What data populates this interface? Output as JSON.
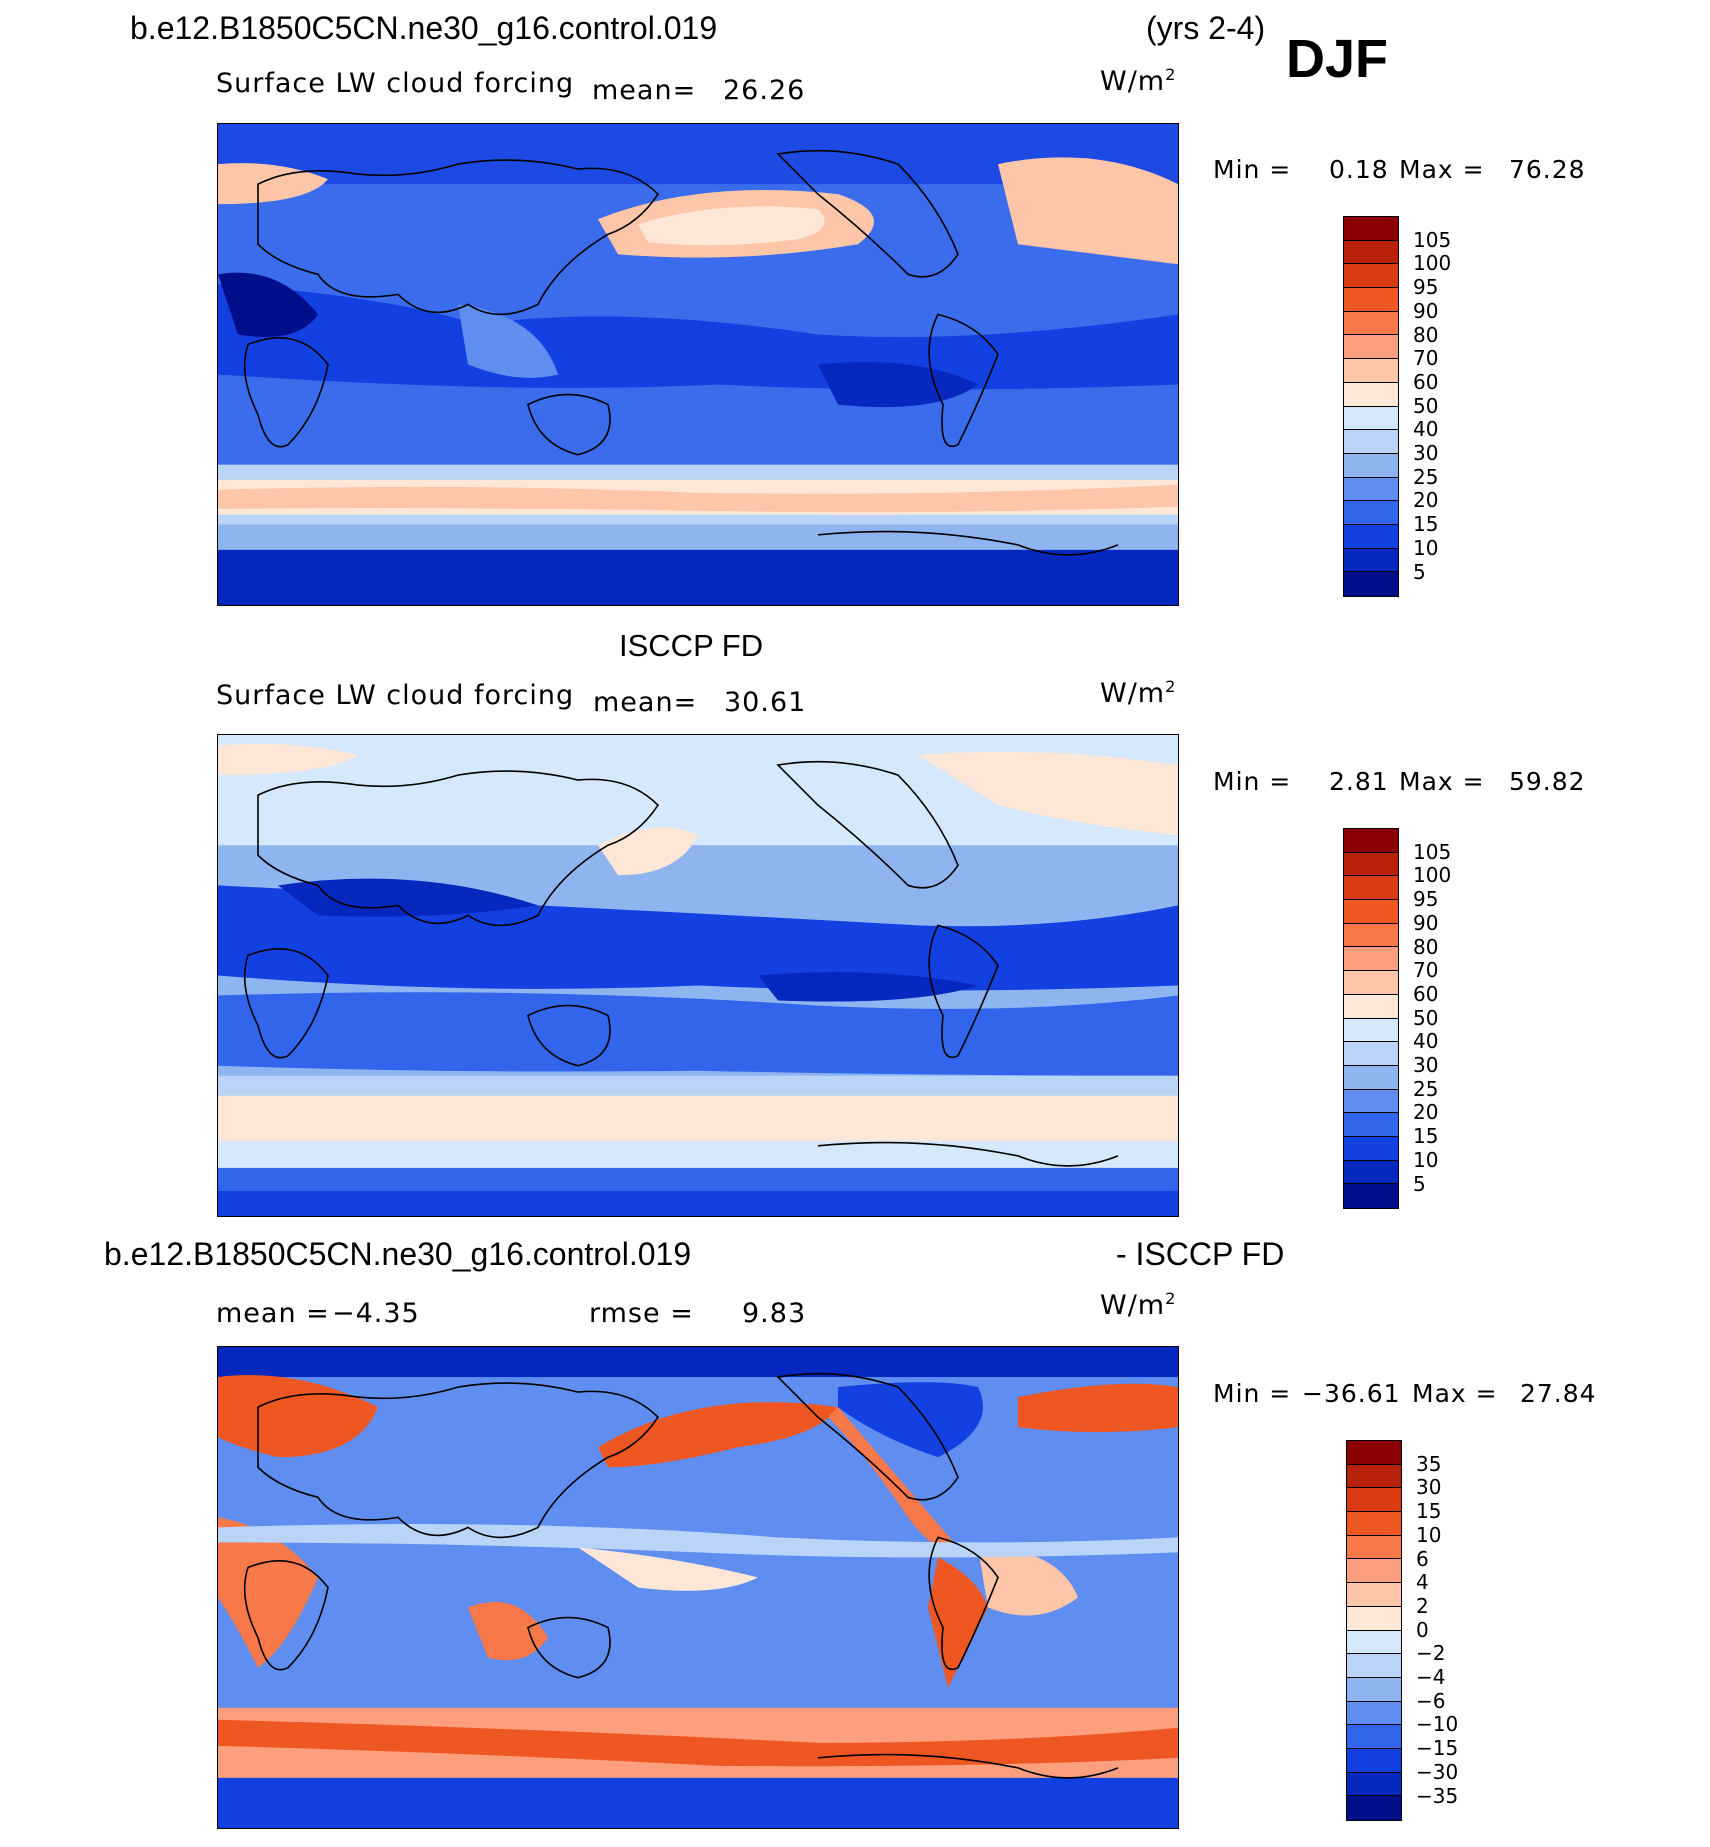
{
  "header": {
    "case_name": "b.e12.B1850C5CN.ne30_g16.control.019",
    "years": "(yrs 2-4)",
    "season": "DJF"
  },
  "panels": [
    {
      "id": "model",
      "title": "",
      "variable": "Surface LW cloud forcing",
      "mean_label": "mean=",
      "mean_value": "26.26",
      "units": "W/m",
      "units_sup": "2",
      "min_label": "Min =",
      "min_value": "0.18",
      "max_label": "Max =",
      "max_value": "76.28"
    },
    {
      "id": "obs",
      "title": "ISCCP FD",
      "variable": "Surface LW cloud forcing",
      "mean_label": "mean=",
      "mean_value": "30.61",
      "units": "W/m",
      "units_sup": "2",
      "min_label": "Min =",
      "min_value": "2.81",
      "max_label": "Max =",
      "max_value": "59.82"
    },
    {
      "id": "diff",
      "title_left": "b.e12.B1850C5CN.ne30_g16.control.019",
      "title_right": "- ISCCP FD",
      "mean_label": "mean =",
      "mean_value": "−4.35",
      "rmse_label": "rmse =",
      "rmse_value": "9.83",
      "units": "W/m",
      "units_sup": "2",
      "min_label": "Min =",
      "min_value": "−36.61",
      "max_label": "Max =",
      "max_value": "27.84"
    }
  ],
  "colorbars": {
    "absolute": {
      "labels": [
        "105",
        "100",
        "95",
        "90",
        "80",
        "70",
        "60",
        "50",
        "40",
        "30",
        "25",
        "20",
        "15",
        "10",
        "5"
      ],
      "colors": [
        "#8b0000",
        "#b8210a",
        "#d93a12",
        "#ef5722",
        "#f7794a",
        "#fb9f7f",
        "#fdc6a9",
        "#fee7d6",
        "#d6e8fb",
        "#b9d4f6",
        "#8fb5f0",
        "#5f8ef0",
        "#3065ec",
        "#1340e0",
        "#0628bf",
        "#000e8a"
      ]
    },
    "difference": {
      "labels": [
        "35",
        "30",
        "15",
        "10",
        "6",
        "4",
        "2",
        "0",
        "−2",
        "−4",
        "−6",
        "−10",
        "−15",
        "−30",
        "−35"
      ],
      "colors": [
        "#8b0000",
        "#b8210a",
        "#d93a12",
        "#ef5722",
        "#f7794a",
        "#fb9f7f",
        "#fdc6a9",
        "#fee7d6",
        "#d6e8fb",
        "#b9d4f6",
        "#8fb5f0",
        "#5f8ef0",
        "#3065ec",
        "#1340e0",
        "#0628bf",
        "#000e8a"
      ]
    }
  }
}
